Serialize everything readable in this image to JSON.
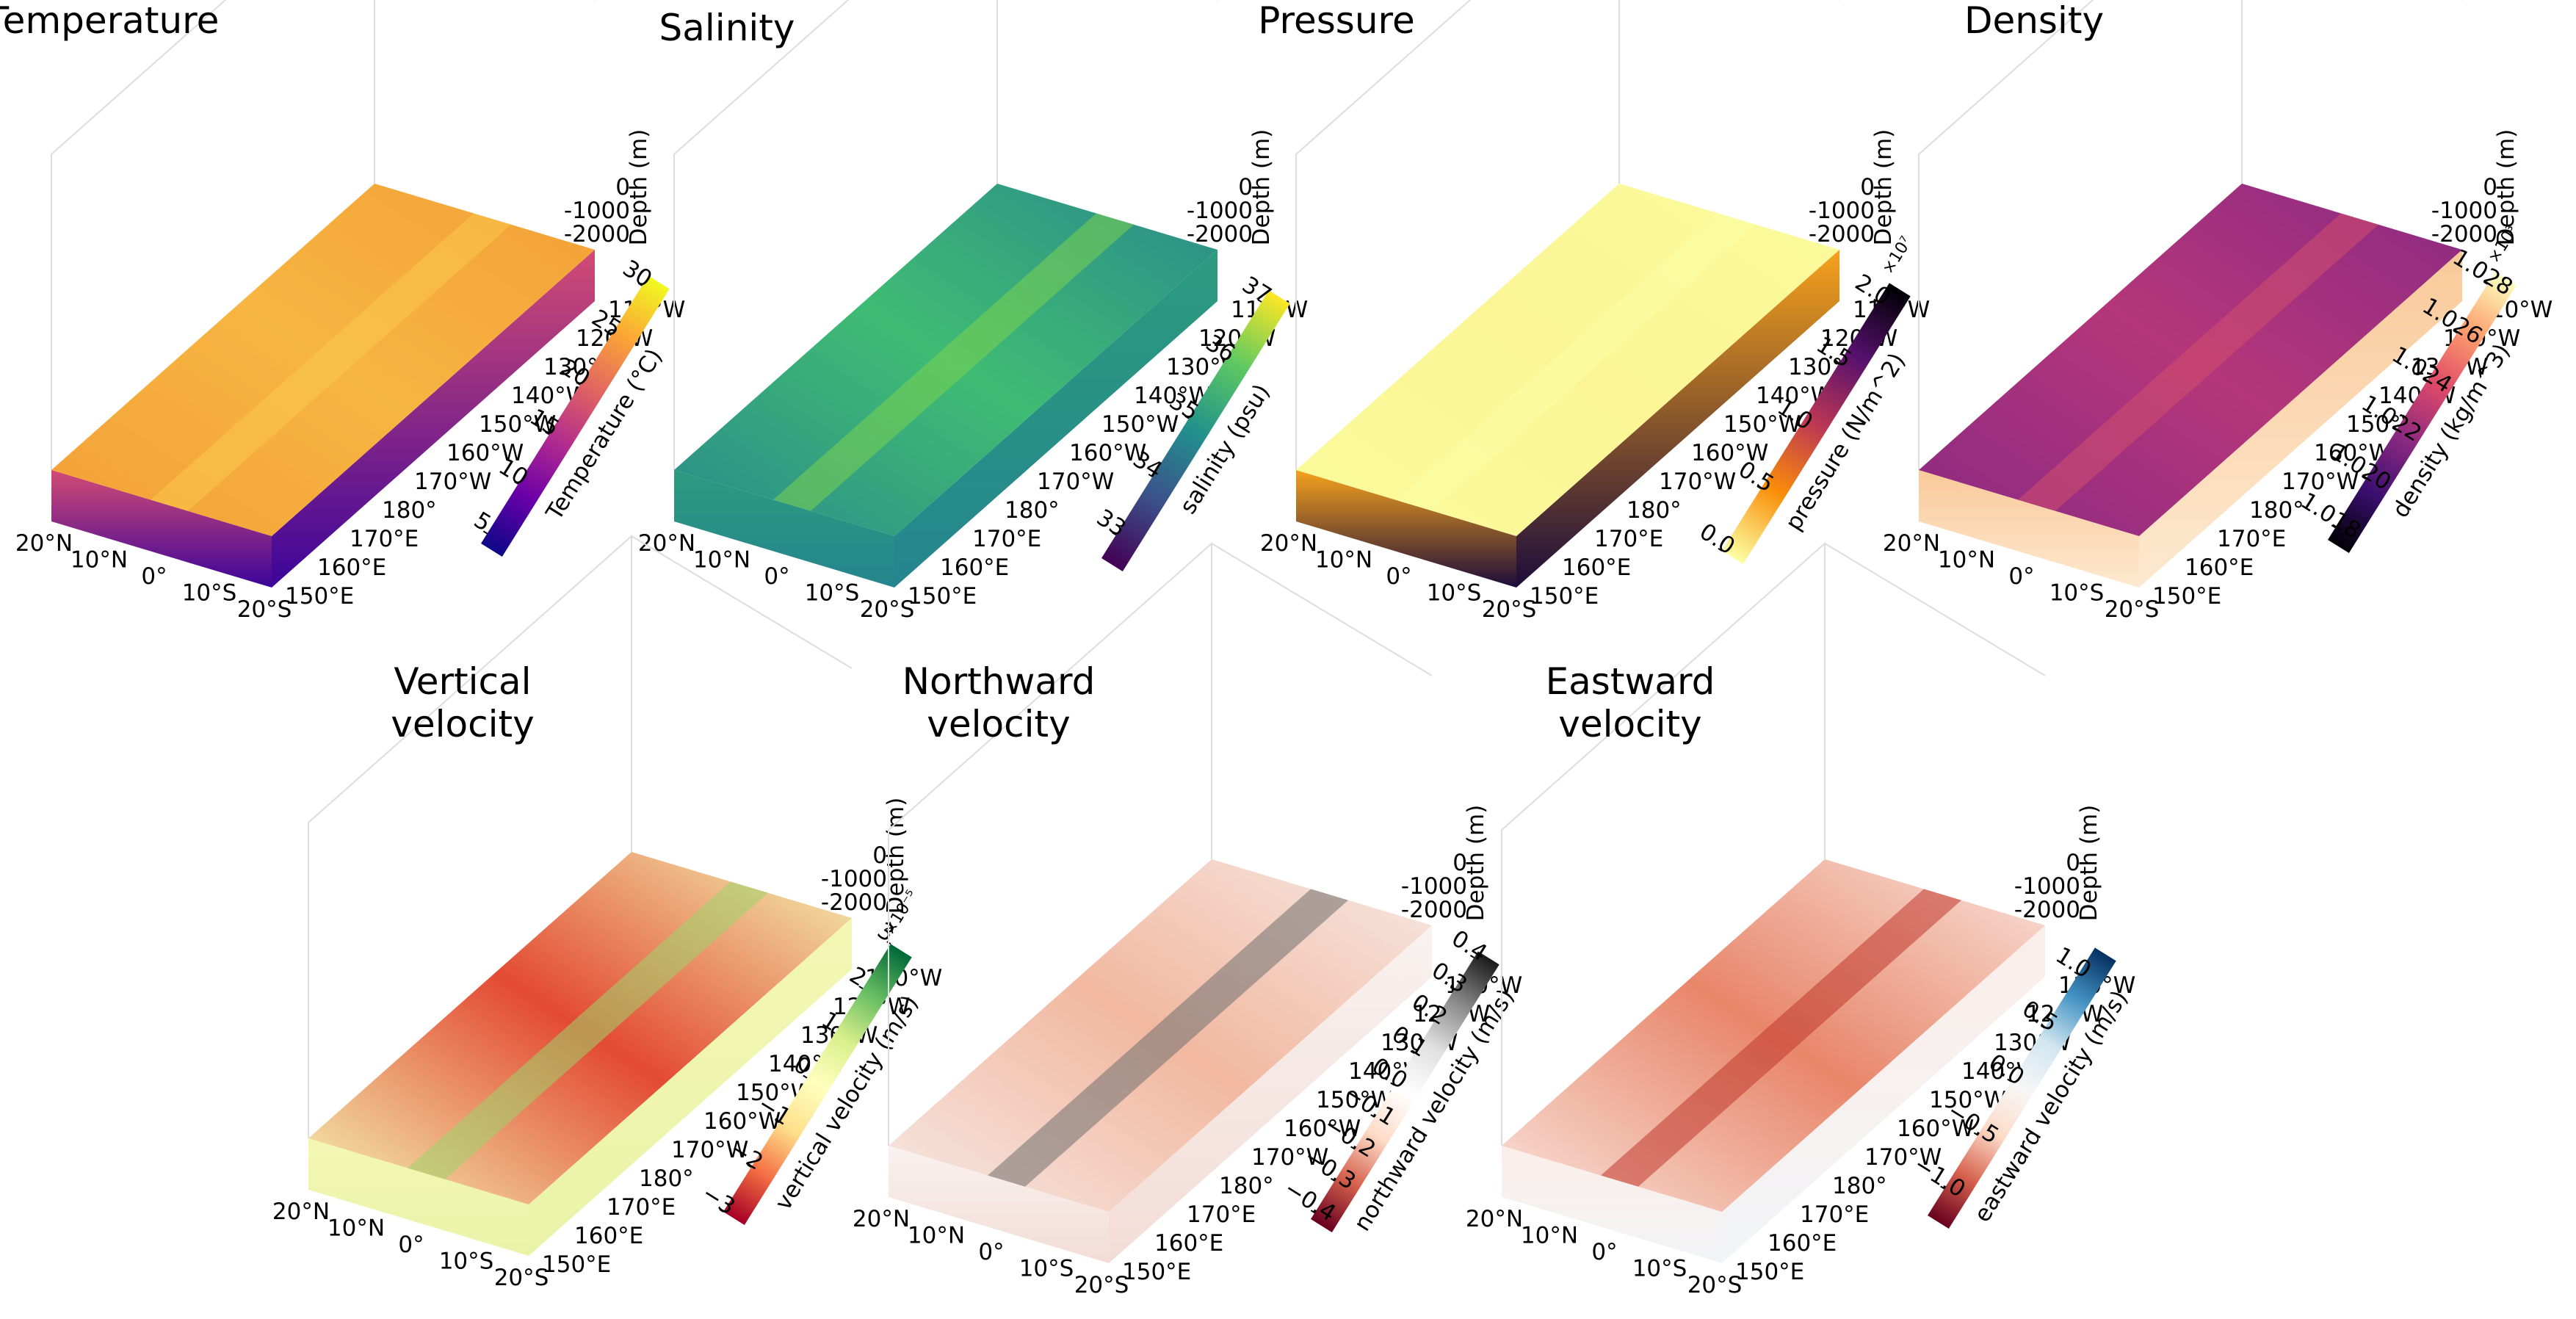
{
  "figure": {
    "background": "#ffffff"
  },
  "chart_data": [
    {
      "type": "heatmap",
      "id": "temperature",
      "title_lines": [
        "Temperature"
      ],
      "axes": {
        "lat_ticks": [
          "20°N",
          "10°N",
          "0°",
          "10°S",
          "20°S"
        ],
        "lon_ticks": [
          "150°E",
          "160°E",
          "170°E",
          "180°",
          "170°W",
          "160°W",
          "150°W",
          "140°W",
          "130°W",
          "120°W",
          "110°W"
        ],
        "depth_ticks": [
          "0",
          "-1000",
          "-2000"
        ],
        "depth_label": "Depth (m)",
        "lat_range": [
          20,
          -20
        ],
        "lon_range_deg_east": [
          150,
          250
        ],
        "depth_range_m": [
          0,
          -2000
        ]
      },
      "colorbar": {
        "label": "Temperature (°C)",
        "colormap": "plasma",
        "ticks": [
          "5",
          "10",
          "15",
          "20",
          "25",
          "30"
        ],
        "tick_values": [
          5,
          10,
          15,
          20,
          25,
          30
        ],
        "range": [
          4,
          31
        ],
        "multiplier": ""
      },
      "surface_colors": {
        "top_base": "#f3a037",
        "top_streak": "#f9c84a",
        "top_warm": "#f7b541",
        "side_top": "#d24b74",
        "side_bottom": "#3b049a"
      }
    },
    {
      "type": "heatmap",
      "id": "salinity",
      "title_lines": [
        "Salinity"
      ],
      "axes": {
        "lat_ticks": [
          "20°N",
          "10°N",
          "0°",
          "10°S",
          "20°S"
        ],
        "lon_ticks": [
          "150°E",
          "160°E",
          "170°E",
          "180°",
          "170°W",
          "160°W",
          "150°W",
          "140°W",
          "130°W",
          "120°W",
          "110°W"
        ],
        "depth_ticks": [
          "0",
          "-1000",
          "-2000"
        ],
        "depth_label": "Depth (m)",
        "lat_range": [
          20,
          -20
        ],
        "lon_range_deg_east": [
          150,
          250
        ],
        "depth_range_m": [
          0,
          -2000
        ]
      },
      "colorbar": {
        "label": "salinity (psu)",
        "colormap": "viridis",
        "ticks": [
          "33",
          "34",
          "35",
          "36",
          "37"
        ],
        "tick_values": [
          33,
          34,
          35,
          36,
          37
        ],
        "range": [
          32.6,
          37.2
        ],
        "multiplier": ""
      },
      "surface_colors": {
        "top_base": "#2a8a8b",
        "top_streak": "#7ad151",
        "top_warm": "#3fbc73",
        "side_top": "#2c9b7f",
        "side_bottom": "#25858e"
      }
    },
    {
      "type": "heatmap",
      "id": "pressure",
      "title_lines": [
        "Pressure"
      ],
      "axes": {
        "lat_ticks": [
          "20°N",
          "10°N",
          "0°",
          "10°S",
          "20°S"
        ],
        "lon_ticks": [
          "150°E",
          "160°E",
          "170°E",
          "180°",
          "170°W",
          "160°W",
          "150°W",
          "140°W",
          "130°W",
          "120°W",
          "110°W"
        ],
        "depth_ticks": [
          "0",
          "-1000",
          "-2000"
        ],
        "depth_label": "Depth (m)",
        "lat_range": [
          20,
          -20
        ],
        "lon_range_deg_east": [
          150,
          250
        ],
        "depth_range_m": [
          0,
          -2000
        ]
      },
      "colorbar": {
        "label": "pressure (N/m^2)",
        "colormap": "inferno_r",
        "ticks": [
          "0.0",
          "0.5",
          "1.0",
          "1.5",
          "2.0"
        ],
        "tick_values": [
          0,
          0.5,
          1.0,
          1.5,
          2.0
        ],
        "range": [
          0,
          2.15
        ],
        "multiplier": "×10⁷"
      },
      "surface_colors": {
        "top_base": "#fbfb9c",
        "top_streak": "#fcfda6",
        "top_warm": "#fbf596",
        "side_top": "#f6a21c",
        "side_bottom": "#1c0c3a"
      }
    },
    {
      "type": "heatmap",
      "id": "density",
      "title_lines": [
        "Density"
      ],
      "axes": {
        "lat_ticks": [
          "20°N",
          "10°N",
          "0°",
          "10°S",
          "20°S"
        ],
        "lon_ticks": [
          "150°E",
          "160°E",
          "170°E",
          "180°",
          "170°W",
          "160°W",
          "150°W",
          "140°W",
          "130°W",
          "120°W",
          "110°W"
        ],
        "depth_ticks": [
          "0",
          "-1000",
          "-2000"
        ],
        "depth_label": "Depth (m)",
        "lat_range": [
          20,
          -20
        ],
        "lon_range_deg_east": [
          150,
          250
        ],
        "depth_range_m": [
          0,
          -2000
        ]
      },
      "colorbar": {
        "label": "density (kg/m^3)",
        "colormap": "magma",
        "ticks": [
          "1.018",
          "1.020",
          "1.022",
          "1.024",
          "1.026",
          "1.028"
        ],
        "tick_values": [
          1.018,
          1.02,
          1.022,
          1.024,
          1.026,
          1.028
        ],
        "range": [
          1.0175,
          1.0285
        ],
        "multiplier": "×10³"
      },
      "surface_colors": {
        "top_base": "#8a2a82",
        "top_streak": "#d24f6e",
        "top_warm": "#b5367a",
        "side_top": "#f9c999",
        "side_bottom": "#fde9d0"
      }
    },
    {
      "type": "heatmap",
      "id": "vertical-velocity",
      "title_lines": [
        "Vertical",
        "velocity"
      ],
      "axes": {
        "lat_ticks": [
          "20°N",
          "10°N",
          "0°",
          "10°S",
          "20°S"
        ],
        "lon_ticks": [
          "150°E",
          "160°E",
          "170°E",
          "180°",
          "170°W",
          "160°W",
          "150°W",
          "140°W",
          "130°W",
          "120°W",
          "110°W"
        ],
        "depth_ticks": [
          "0",
          "-1000",
          "-2000"
        ],
        "depth_label": "Depth (m)",
        "lat_range": [
          20,
          -20
        ],
        "lon_range_deg_east": [
          150,
          250
        ],
        "depth_range_m": [
          0,
          -2000
        ]
      },
      "colorbar": {
        "label": "vertical velocity (m/s)",
        "colormap": "RdYlGn",
        "ticks": [
          "−3",
          "−2",
          "−1",
          "0",
          "1",
          "2",
          "3"
        ],
        "tick_values": [
          -3,
          -2,
          -1,
          0,
          1,
          2,
          3
        ],
        "range": [
          -3,
          3
        ],
        "multiplier": "×10⁻⁵"
      },
      "surface_colors": {
        "top_base": "#f4f7b5",
        "top_streak": "#9fd46a",
        "top_warm": "#e34a33",
        "side_top": "#f4f7b5",
        "side_bottom": "#e9f3a8"
      }
    },
    {
      "type": "heatmap",
      "id": "northward-velocity",
      "title_lines": [
        "Northward",
        "velocity"
      ],
      "axes": {
        "lat_ticks": [
          "20°N",
          "10°N",
          "0°",
          "10°S",
          "20°S"
        ],
        "lon_ticks": [
          "150°E",
          "160°E",
          "170°E",
          "180°",
          "170°W",
          "160°W",
          "150°W",
          "140°W",
          "130°W",
          "120°W",
          "110°W"
        ],
        "depth_ticks": [
          "0",
          "-1000",
          "-2000"
        ],
        "depth_label": "Depth (m)",
        "lat_range": [
          20,
          -20
        ],
        "lon_range_deg_east": [
          150,
          250
        ],
        "depth_range_m": [
          0,
          -2000
        ]
      },
      "colorbar": {
        "label": "northward velocity (m/s)",
        "colormap": "RdGy",
        "ticks": [
          "−0.4",
          "−0.3",
          "−0.2",
          "−0.1",
          "0.0",
          "0.1",
          "0.2",
          "0.3",
          "0.4"
        ],
        "tick_values": [
          -0.4,
          -0.3,
          -0.2,
          -0.1,
          0,
          0.1,
          0.2,
          0.3,
          0.4
        ],
        "range": [
          -0.42,
          0.42
        ],
        "multiplier": ""
      },
      "surface_colors": {
        "top_base": "#f6e9e4",
        "top_streak": "#6f6f6f",
        "top_warm": "#f2b8a0",
        "side_top": "#f8f2f0",
        "side_bottom": "#f3dcd6"
      }
    },
    {
      "type": "heatmap",
      "id": "eastward-velocity",
      "title_lines": [
        "Eastward",
        "velocity"
      ],
      "axes": {
        "lat_ticks": [
          "20°N",
          "10°N",
          "0°",
          "10°S",
          "20°S"
        ],
        "lon_ticks": [
          "150°E",
          "160°E",
          "170°E",
          "180°",
          "170°W",
          "160°W",
          "150°W",
          "140°W",
          "130°W",
          "120°W",
          "110°W"
        ],
        "depth_ticks": [
          "0",
          "-1000",
          "-2000"
        ],
        "depth_label": "Depth (m)",
        "lat_range": [
          20,
          -20
        ],
        "lon_range_deg_east": [
          150,
          250
        ],
        "depth_range_m": [
          0,
          -2000
        ]
      },
      "colorbar": {
        "label": "eastward velocity (m/s)",
        "colormap": "RdBu",
        "ticks": [
          "−1.0",
          "−0.5",
          "0.0",
          "0.5",
          "1.0"
        ],
        "tick_values": [
          -1.0,
          -0.5,
          0,
          0.5,
          1.0
        ],
        "range": [
          -1.25,
          1.25
        ],
        "multiplier": ""
      },
      "surface_colors": {
        "top_base": "#f9e4dc",
        "top_streak": "#c0392b",
        "top_warm": "#e8866a",
        "side_top": "#fbeee9",
        "side_bottom": "#f2f4f7"
      }
    }
  ]
}
